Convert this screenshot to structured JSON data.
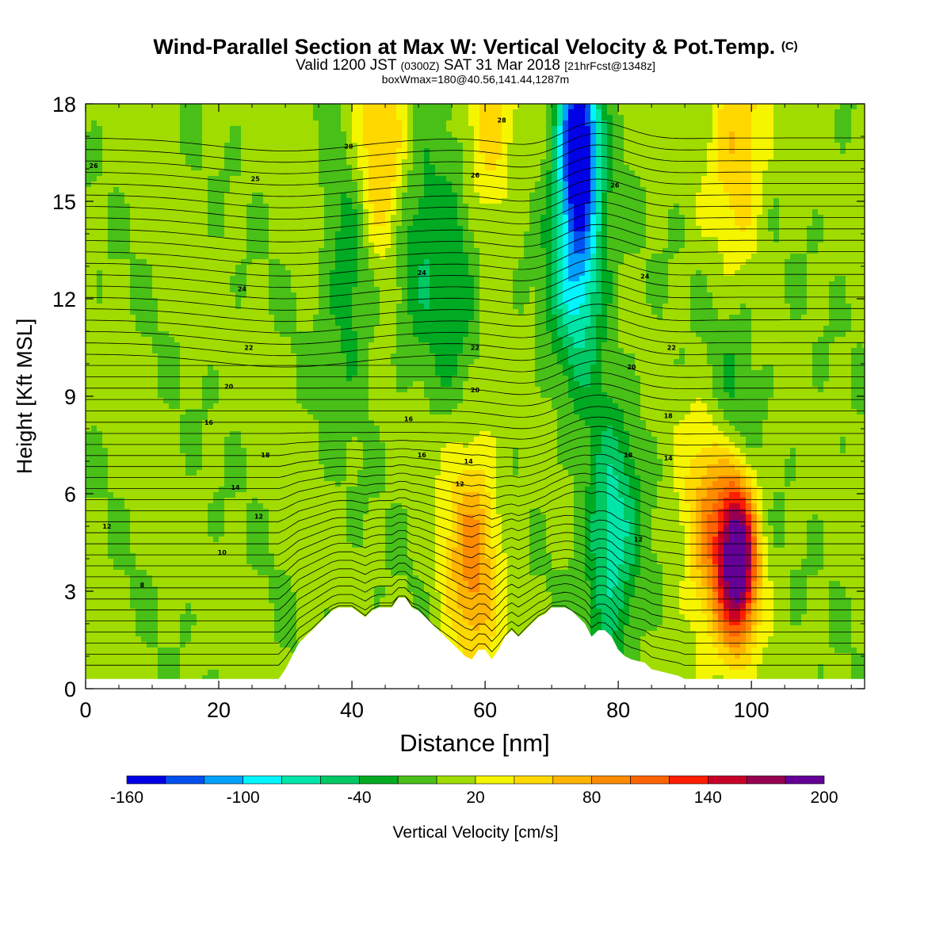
{
  "header": {
    "title_main": "Wind-Parallel Section at Max W: Vertical Velocity & Pot.Temp.",
    "title_mark": "(C)",
    "valid_prefix": "Valid 1200 JST",
    "valid_utc": "(0300Z)",
    "valid_date": "SAT 31 Mar 2018",
    "forecast_tag": "[21hrFcst@1348z]",
    "box_info": "boxWmax=180@40.56,141.44,1287m"
  },
  "colors": {
    "scale": [
      "#0000e6",
      "#0050f0",
      "#00a0ff",
      "#00f5ff",
      "#00e6a8",
      "#00c864",
      "#00aa22",
      "#48c018",
      "#a0dc00",
      "#f5f500",
      "#ffd800",
      "#ffb400",
      "#ff8c00",
      "#ff6400",
      "#ff1e00",
      "#c80028",
      "#960050",
      "#640096"
    ],
    "terrain": "#ffffff",
    "contour": "#000000"
  },
  "chart_data": {
    "type": "heatmap",
    "xlabel": "Distance [nm]",
    "ylabel": "Height [Kft MSL]",
    "xlim": [
      0,
      117
    ],
    "ylim": [
      0,
      18
    ],
    "xticks": [
      0,
      20,
      40,
      60,
      80,
      100
    ],
    "yticks": [
      0,
      3,
      6,
      9,
      12,
      15,
      18
    ],
    "colorbar": {
      "label": "Vertical Velocity [cm/s]",
      "tick_labels": [
        "-160",
        "-100",
        "-40",
        "20",
        "80",
        "140",
        "200"
      ],
      "tick_values": [
        -160,
        -100,
        -40,
        20,
        80,
        140,
        200
      ],
      "bounds": [
        -160,
        -140,
        -120,
        -100,
        -80,
        -60,
        -40,
        -20,
        0,
        20,
        40,
        60,
        80,
        100,
        120,
        140,
        160,
        180,
        200
      ]
    },
    "vertical_velocity_features": [
      {
        "x": 58,
        "z": 4.0,
        "w": 80
      },
      {
        "x": 98,
        "z": 4.0,
        "w": 200
      },
      {
        "x": 94,
        "z": 5.0,
        "w": 80
      },
      {
        "x": 74,
        "z": 17.0,
        "w": -150
      },
      {
        "x": 74,
        "z": 13.5,
        "w": -110
      },
      {
        "x": 79,
        "z": 4.5,
        "w": -80
      },
      {
        "x": 44,
        "z": 16.0,
        "w": 70
      },
      {
        "x": 60,
        "z": 17.0,
        "w": 50
      },
      {
        "x": 98,
        "z": 17.0,
        "w": 60
      },
      {
        "x": 40,
        "z": 13.0,
        "w": -50
      },
      {
        "x": 56,
        "z": 13.0,
        "w": -45
      },
      {
        "x": 50,
        "z": 14.0,
        "w": -40
      },
      {
        "x": 97,
        "z": 8.5,
        "w": -35
      }
    ],
    "potential_temperature_labels": [
      {
        "text": "8",
        "x": 8.5,
        "z": 3.2
      },
      {
        "text": "10",
        "x": 20.5,
        "z": 4.2
      },
      {
        "text": "12",
        "x": 3.2,
        "z": 5.0
      },
      {
        "text": "12",
        "x": 26,
        "z": 5.3
      },
      {
        "text": "14",
        "x": 22.5,
        "z": 6.2
      },
      {
        "text": "16",
        "x": 18.5,
        "z": 8.2
      },
      {
        "text": "18",
        "x": 27,
        "z": 7.2
      },
      {
        "text": "20",
        "x": 21.5,
        "z": 9.3
      },
      {
        "text": "22",
        "x": 24.5,
        "z": 10.5
      },
      {
        "text": "24",
        "x": 23.5,
        "z": 12.3
      },
      {
        "text": "25",
        "x": 25.5,
        "z": 15.7
      },
      {
        "text": "26",
        "x": 1.2,
        "z": 16.1
      },
      {
        "text": "28",
        "x": 39.5,
        "z": 16.7
      },
      {
        "text": "16",
        "x": 48.5,
        "z": 8.3
      },
      {
        "text": "16",
        "x": 50.5,
        "z": 7.2
      },
      {
        "text": "24",
        "x": 50.5,
        "z": 12.8
      },
      {
        "text": "14",
        "x": 57.5,
        "z": 7.0
      },
      {
        "text": "12",
        "x": 56.2,
        "z": 6.3
      },
      {
        "text": "20",
        "x": 58.5,
        "z": 9.2
      },
      {
        "text": "22",
        "x": 58.5,
        "z": 10.5
      },
      {
        "text": "26",
        "x": 58.5,
        "z": 15.8
      },
      {
        "text": "28",
        "x": 62.5,
        "z": 17.5
      },
      {
        "text": "26",
        "x": 79.5,
        "z": 15.5
      },
      {
        "text": "24",
        "x": 84,
        "z": 12.7
      },
      {
        "text": "20",
        "x": 82,
        "z": 9.9
      },
      {
        "text": "18",
        "x": 81.5,
        "z": 7.2
      },
      {
        "text": "12",
        "x": 83,
        "z": 4.6
      },
      {
        "text": "22",
        "x": 88,
        "z": 10.5
      },
      {
        "text": "18",
        "x": 87.5,
        "z": 8.4
      },
      {
        "text": "14",
        "x": 87.5,
        "z": 7.1
      }
    ],
    "terrain_profile": {
      "x": [
        0,
        29,
        30,
        31,
        32,
        33,
        34,
        35,
        36,
        37,
        38,
        39,
        40,
        42,
        43,
        44,
        46,
        47,
        48,
        49,
        50,
        51,
        52,
        53,
        54,
        55,
        56,
        57,
        58,
        59,
        60,
        61,
        62,
        63,
        64,
        65,
        66,
        67,
        68,
        69,
        70,
        71,
        72,
        73,
        74,
        75,
        76,
        77,
        78,
        79,
        80,
        81,
        82,
        84,
        85,
        87,
        89,
        90,
        117
      ],
      "z": [
        0.3,
        0.3,
        0.6,
        1.0,
        1.4,
        1.6,
        1.8,
        2.0,
        2.2,
        2.4,
        2.5,
        2.5,
        2.5,
        2.2,
        2.4,
        2.5,
        2.5,
        2.8,
        2.8,
        2.5,
        2.4,
        2.2,
        2.0,
        1.8,
        1.6,
        1.4,
        1.2,
        1.0,
        0.9,
        1.2,
        1.2,
        0.9,
        1.2,
        1.6,
        1.8,
        1.6,
        1.8,
        2.0,
        2.2,
        2.3,
        2.5,
        2.5,
        2.5,
        2.4,
        2.2,
        2.0,
        1.6,
        1.8,
        1.8,
        1.6,
        1.2,
        1.0,
        0.9,
        0.8,
        0.6,
        0.5,
        0.4,
        0.3,
        0.3
      ]
    }
  }
}
